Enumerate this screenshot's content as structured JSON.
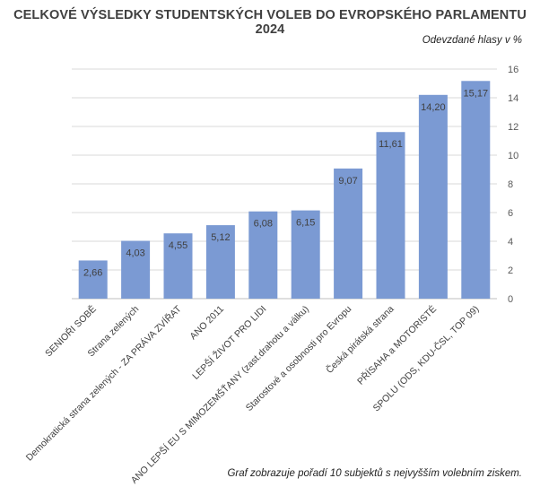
{
  "chart_data": {
    "type": "bar",
    "title": "CELKOVÉ VÝSLEDKY STUDENTSKÝCH VOLEB DO EVROPSKÉHO PARLAMENTU 2024",
    "ylabel": "Odevzdané hlasy v %",
    "note": "Graf zobrazuje pořadí 10 subjektů s nejvyšším volebním ziskem.",
    "categories": [
      "SENIOŘI SOBĚ",
      "Strana zelených",
      "Demokratická strana zelených - ZA PRÁVA ZVÍŘAT",
      "ANO 2011",
      "LEPŠÍ ŽIVOT PRO LIDI",
      "ANO LEPŠÍ EU S MIMOZEMŠŤANY (zast.drahotu a válku)",
      "Starostové a osobnosti pro Evropu",
      "Česká pirátská strana",
      "PŘÍSAHA a MOTORISTÉ",
      "SPOLU (ODS, KDU-ČSL, TOP 09)"
    ],
    "values": [
      2.66,
      4.03,
      4.55,
      5.12,
      6.08,
      6.15,
      9.07,
      11.61,
      14.2,
      15.17
    ],
    "value_labels": [
      "2,66",
      "4,03",
      "4,55",
      "5,12",
      "6,08",
      "6,15",
      "9,07",
      "11,61",
      "14,20",
      "15,17"
    ],
    "yticks": [
      0,
      2,
      4,
      6,
      8,
      10,
      12,
      14,
      16
    ],
    "ylim": [
      0,
      16
    ],
    "y_axis_side": "right",
    "grid": true,
    "bar_color": "#7b9ad3"
  }
}
